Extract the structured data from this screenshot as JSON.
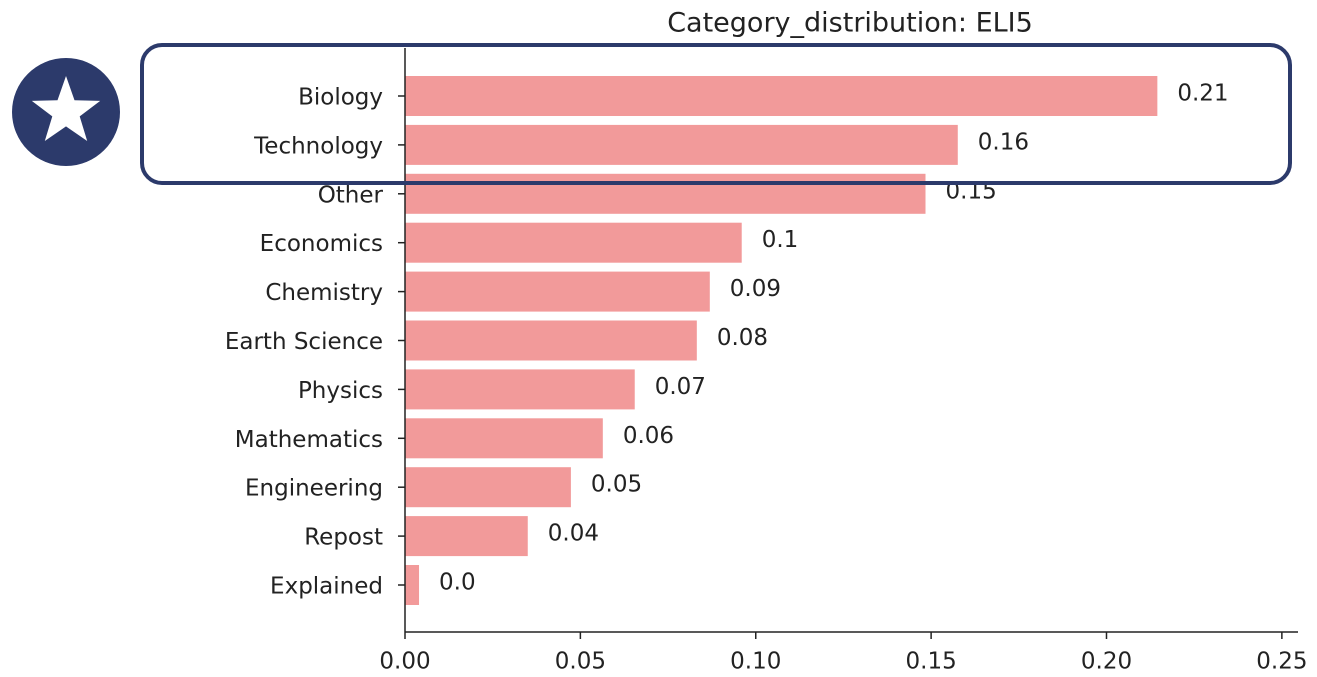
{
  "chart_data": {
    "type": "barh",
    "title": "Category_distribution: ELI5",
    "categories": [
      "Biology",
      "Technology",
      "Other",
      "Economics",
      "Chemistry",
      "Earth Science",
      "Physics",
      "Mathematics",
      "Engineering",
      "Repost",
      "Explained"
    ],
    "values": [
      0.2145,
      0.1576,
      0.1484,
      0.096,
      0.0869,
      0.0832,
      0.0655,
      0.0564,
      0.0473,
      0.035,
      0.004
    ],
    "value_labels": [
      "0.21",
      "0.16",
      "0.15",
      "0.1",
      "0.09",
      "0.08",
      "0.07",
      "0.06",
      "0.05",
      "0.04",
      "0.0"
    ],
    "color": "#f29a9a",
    "xlim": [
      0,
      0.2546
    ],
    "xticks": [
      {
        "value": 0,
        "label": "0.00"
      },
      {
        "value": 0.05,
        "label": "0.05"
      },
      {
        "value": 0.1,
        "label": "0.10"
      },
      {
        "value": 0.15,
        "label": "0.15"
      },
      {
        "value": 0.2,
        "label": "0.20"
      },
      {
        "value": 0.25,
        "label": "0.25"
      }
    ],
    "grid": false
  }
}
